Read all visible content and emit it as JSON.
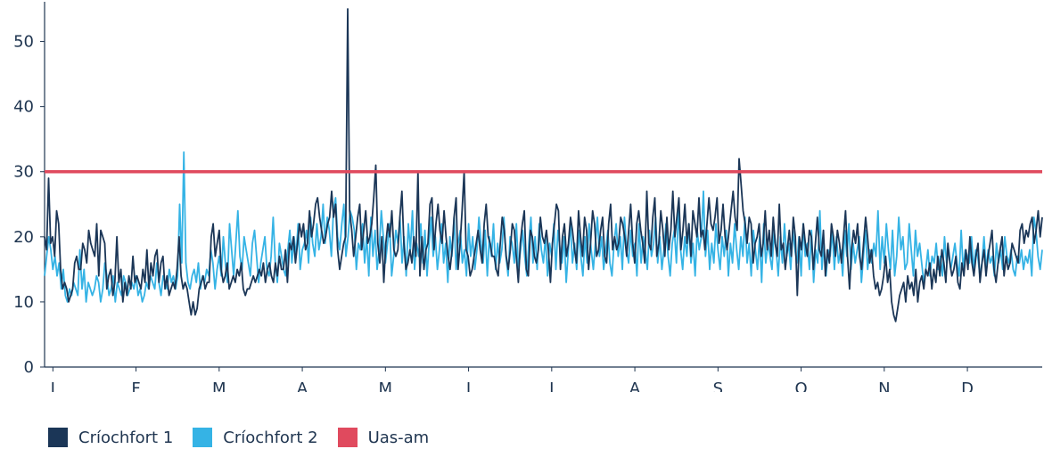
{
  "chart_data": {
    "type": "line",
    "ylim": [
      0,
      55
    ],
    "yticks": [
      0,
      10,
      20,
      30,
      40,
      50
    ],
    "xtick_labels": [
      "J",
      "F",
      "M",
      "A",
      "M",
      "J",
      "J",
      "A",
      "S",
      "O",
      "N",
      "D"
    ],
    "grid": false,
    "legend_position": "bottom-left",
    "series": [
      {
        "name": "Críochfort 1",
        "color": "#1b3657",
        "values": [
          20,
          18,
          29,
          19,
          20,
          17,
          24,
          22,
          15,
          12,
          13,
          12,
          10,
          11,
          12,
          16,
          17,
          15,
          15,
          19,
          18,
          16,
          21,
          19,
          18,
          17,
          22,
          14,
          21,
          20,
          19,
          12,
          14,
          15,
          11,
          13,
          20,
          13,
          15,
          10,
          13,
          11,
          14,
          12,
          17,
          13,
          14,
          13,
          12,
          15,
          13,
          18,
          12,
          16,
          14,
          17,
          18,
          13,
          16,
          17,
          12,
          14,
          11,
          12,
          13,
          12,
          15,
          20,
          14,
          12,
          13,
          12,
          10,
          8,
          10,
          8,
          9,
          12,
          13,
          14,
          12,
          13,
          13,
          20,
          22,
          17,
          19,
          21,
          15,
          13,
          14,
          16,
          12,
          13,
          14,
          13,
          15,
          14,
          16,
          12,
          11,
          12,
          12,
          13,
          14,
          13,
          14,
          15,
          14,
          16,
          13,
          15,
          16,
          14,
          13,
          16,
          14,
          17,
          15,
          15,
          18,
          13,
          19,
          18,
          20,
          16,
          19,
          22,
          20,
          22,
          18,
          19,
          24,
          20,
          22,
          25,
          26,
          23,
          21,
          19,
          20,
          22,
          23,
          27,
          23,
          25,
          18,
          15,
          17,
          19,
          20,
          55,
          24,
          21,
          17,
          20,
          23,
          25,
          18,
          21,
          24,
          19,
          20,
          22,
          26,
          31,
          19,
          16,
          20,
          13,
          19,
          22,
          20,
          24,
          18,
          17,
          18,
          23,
          27,
          19,
          15,
          16,
          18,
          16,
          20,
          17,
          30,
          14,
          20,
          15,
          18,
          19,
          25,
          26,
          18,
          22,
          25,
          21,
          19,
          24,
          20,
          17,
          15,
          18,
          23,
          26,
          15,
          19,
          24,
          30,
          18,
          17,
          14,
          15,
          17,
          19,
          21,
          18,
          16,
          22,
          25,
          20,
          19,
          17,
          17,
          15,
          14,
          19,
          23,
          21,
          17,
          15,
          18,
          22,
          21,
          17,
          13,
          19,
          22,
          24,
          15,
          14,
          21,
          20,
          17,
          16,
          18,
          23,
          20,
          19,
          21,
          18,
          13,
          19,
          22,
          25,
          24,
          15,
          20,
          22,
          17,
          19,
          23,
          21,
          18,
          16,
          24,
          20,
          17,
          23,
          21,
          15,
          19,
          24,
          22,
          17,
          18,
          21,
          23,
          17,
          16,
          22,
          25,
          18,
          20,
          18,
          19,
          23,
          22,
          20,
          17,
          21,
          25,
          19,
          16,
          22,
          24,
          21,
          19,
          16,
          27,
          19,
          18,
          23,
          26,
          17,
          19,
          24,
          21,
          17,
          23,
          18,
          21,
          27,
          20,
          23,
          26,
          18,
          21,
          25,
          19,
          22,
          17,
          24,
          22,
          20,
          26,
          20,
          21,
          18,
          22,
          26,
          22,
          21,
          23,
          26,
          19,
          21,
          25,
          20,
          18,
          21,
          24,
          27,
          23,
          21,
          32,
          28,
          24,
          22,
          19,
          23,
          22,
          16,
          19,
          20,
          22,
          17,
          19,
          24,
          18,
          21,
          17,
          23,
          19,
          17,
          25,
          18,
          19,
          15,
          18,
          21,
          17,
          23,
          20,
          11,
          20,
          18,
          22,
          19,
          17,
          21,
          20,
          15,
          19,
          23,
          18,
          17,
          21,
          14,
          18,
          16,
          22,
          20,
          17,
          21,
          19,
          16,
          20,
          24,
          17,
          12,
          18,
          21,
          19,
          22,
          17,
          15,
          19,
          23,
          20,
          16,
          18,
          14,
          12,
          13,
          11,
          12,
          14,
          17,
          13,
          15,
          10,
          8,
          7,
          9,
          11,
          12,
          13,
          10,
          14,
          12,
          13,
          11,
          15,
          10,
          13,
          14,
          12,
          15,
          14,
          16,
          12,
          15,
          13,
          17,
          14,
          18,
          16,
          13,
          19,
          16,
          14,
          15,
          17,
          13,
          12,
          16,
          14,
          18,
          15,
          20,
          16,
          14,
          17,
          19,
          13,
          16,
          18,
          14,
          17,
          19,
          21,
          15,
          13,
          16,
          18,
          20,
          14,
          17,
          15,
          16,
          19,
          18,
          17,
          16,
          21,
          22,
          19,
          21,
          20,
          22,
          23,
          19,
          21,
          24,
          20,
          23
        ]
      },
      {
        "name": "Críochfort 2",
        "color": "#35b3e5",
        "values": [
          14,
          17,
          20,
          18,
          15,
          17,
          14,
          16,
          12,
          15,
          11,
          10,
          12,
          11,
          13,
          12,
          11,
          18,
          12,
          15,
          10,
          13,
          12,
          11,
          12,
          14,
          13,
          10,
          12,
          16,
          14,
          11,
          12,
          14,
          10,
          13,
          12,
          11,
          14,
          13,
          11,
          12,
          13,
          12,
          14,
          11,
          12,
          10,
          11,
          13,
          12,
          14,
          13,
          12,
          16,
          13,
          11,
          14,
          13,
          12,
          15,
          13,
          14,
          12,
          14,
          25,
          16,
          33,
          16,
          13,
          12,
          14,
          15,
          13,
          16,
          12,
          14,
          13,
          15,
          14,
          18,
          16,
          12,
          15,
          17,
          14,
          20,
          16,
          13,
          22,
          18,
          14,
          19,
          24,
          17,
          15,
          20,
          18,
          16,
          14,
          19,
          21,
          17,
          13,
          16,
          18,
          20,
          15,
          14,
          17,
          23,
          16,
          13,
          19,
          17,
          15,
          14,
          18,
          21,
          16,
          20,
          17,
          22,
          15,
          18,
          19,
          21,
          16,
          23,
          19,
          17,
          22,
          18,
          20,
          25,
          19,
          23,
          21,
          17,
          24,
          26,
          20,
          18,
          22,
          25,
          17,
          20,
          24,
          23,
          21,
          15,
          19,
          18,
          22,
          16,
          20,
          14,
          23,
          17,
          21,
          15,
          18,
          24,
          20,
          16,
          19,
          22,
          14,
          17,
          21,
          19,
          23,
          16,
          20,
          14,
          22,
          18,
          24,
          15,
          19,
          17,
          22,
          16,
          21,
          14,
          19,
          23,
          17,
          20,
          15,
          18,
          22,
          16,
          19,
          13,
          20,
          17,
          23,
          15,
          19,
          21,
          16,
          18,
          14,
          22,
          17,
          20,
          15,
          18,
          23,
          19,
          16,
          21,
          14,
          20,
          17,
          22,
          15,
          19,
          16,
          18,
          23,
          17,
          14,
          20,
          19,
          16,
          22,
          15,
          18,
          21,
          17,
          14,
          19,
          23,
          16,
          20,
          15,
          22,
          18,
          16,
          20,
          14,
          19,
          17,
          22,
          15,
          21,
          18,
          16,
          20,
          13,
          18,
          22,
          16,
          19,
          15,
          21,
          17,
          14,
          20,
          16,
          22,
          18,
          15,
          19,
          23,
          17,
          20,
          15,
          18,
          21,
          16,
          14,
          19,
          22,
          17,
          20,
          15,
          23,
          18,
          16,
          21,
          17,
          19,
          14,
          22,
          16,
          20,
          18,
          15,
          21,
          17,
          19,
          23,
          16,
          20,
          15,
          18,
          22,
          17,
          14,
          19,
          21,
          16,
          24,
          18,
          15,
          20,
          17,
          22,
          16,
          19,
          14,
          21,
          18,
          20,
          27,
          17,
          21,
          15,
          19,
          16,
          22,
          18,
          15,
          20,
          17,
          21,
          14,
          19,
          16,
          22,
          18,
          15,
          20,
          17,
          23,
          16,
          19,
          14,
          21,
          18,
          15,
          20,
          13,
          22,
          16,
          19,
          17,
          15,
          21,
          18,
          14,
          20,
          16,
          22,
          17,
          19,
          15,
          21,
          18,
          16,
          20,
          14,
          22,
          17,
          19,
          15,
          21,
          13,
          18,
          16,
          24,
          15,
          19,
          14,
          18,
          17,
          21,
          15,
          20,
          16,
          18,
          14,
          21,
          17,
          22,
          15,
          19,
          16,
          18,
          20,
          13,
          17,
          21,
          15,
          18,
          16,
          19,
          17,
          24,
          15,
          20,
          16,
          22,
          18,
          15,
          21,
          14,
          17,
          23,
          18,
          20,
          15,
          16,
          22,
          18,
          14,
          21,
          17,
          19,
          16,
          13,
          15,
          18,
          14,
          17,
          16,
          19,
          15,
          17,
          14,
          20,
          16,
          18,
          15,
          17,
          19,
          16,
          14,
          21,
          15,
          18,
          17,
          16,
          20,
          15,
          18,
          17,
          14,
          16,
          20,
          15,
          18,
          16,
          17,
          14,
          19,
          16,
          18,
          15,
          20,
          17,
          16,
          18,
          15,
          14,
          17,
          16,
          18,
          15,
          17,
          16,
          18,
          14,
          23,
          21,
          17,
          15,
          18
        ]
      },
      {
        "name": "Uas-am",
        "color": "#e04a5e",
        "values": [
          30,
          30
        ]
      }
    ]
  }
}
